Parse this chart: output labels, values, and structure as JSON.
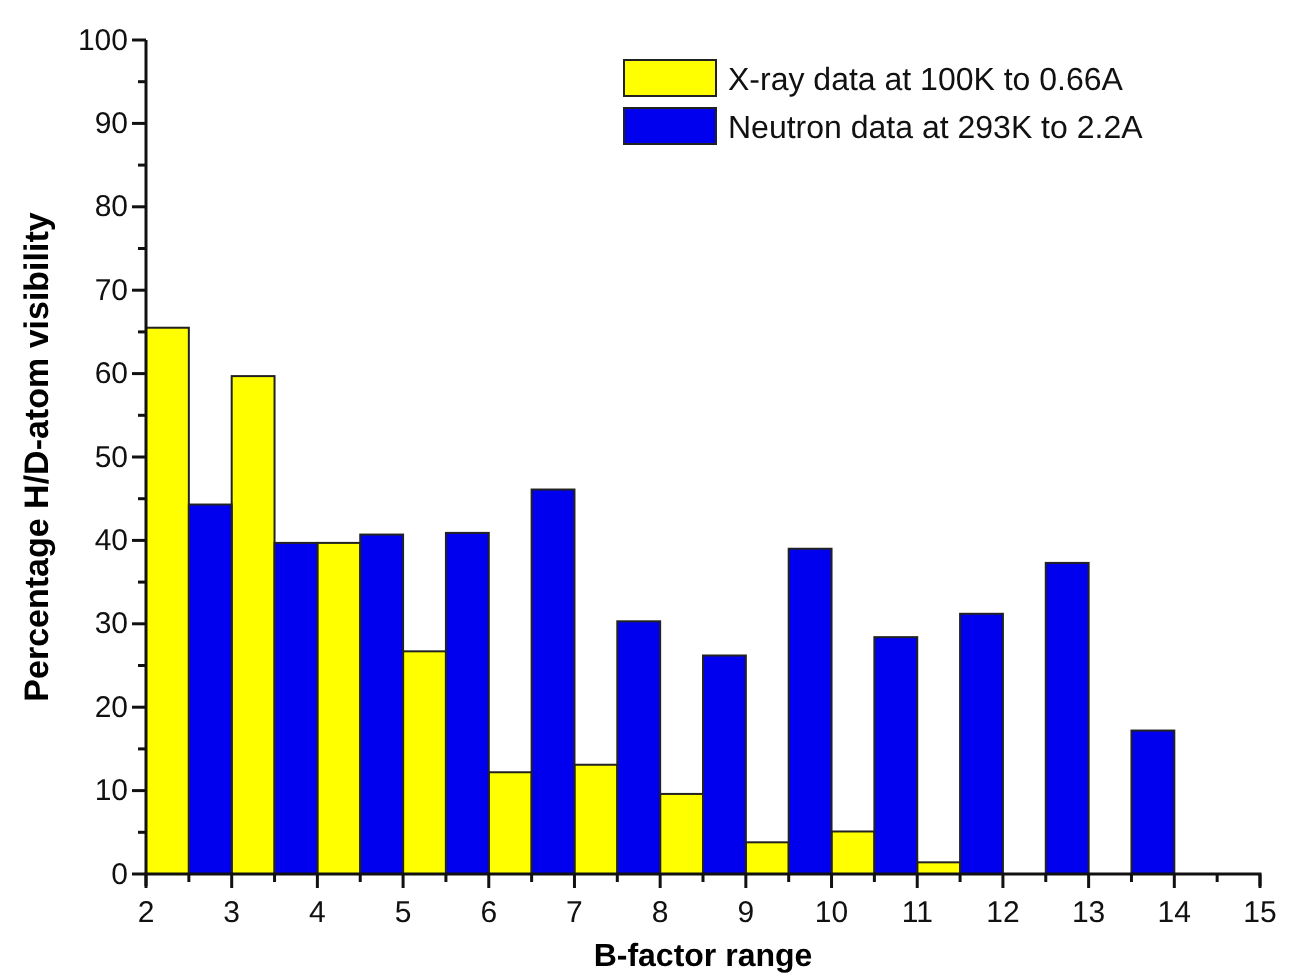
{
  "chart_data": {
    "type": "bar",
    "xlabel": "B-factor range",
    "ylabel": "Percentage H/D-atom visibility",
    "xlim": [
      2,
      15
    ],
    "ylim": [
      0,
      100
    ],
    "xticks": [
      2,
      {
        "value": 2.5,
        "label": null
      },
      3,
      {
        "value": 3.5,
        "label": null
      },
      4,
      {
        "value": 4.5,
        "label": null
      },
      5,
      {
        "value": 5.5,
        "label": null
      },
      6,
      {
        "value": 6.5,
        "label": null
      },
      7,
      {
        "value": 7.5,
        "label": null
      },
      8,
      {
        "value": 8.5,
        "label": null
      },
      9,
      {
        "value": 9.5,
        "label": null
      },
      10,
      {
        "value": 10.5,
        "label": null
      },
      11,
      {
        "value": 11.5,
        "label": null
      },
      12,
      {
        "value": 12.5,
        "label": null
      },
      13,
      {
        "value": 13.5,
        "label": null
      },
      14,
      {
        "value": 14.5,
        "label": null
      },
      15
    ],
    "yticks": [
      0,
      {
        "value": 5,
        "label": null
      },
      10,
      {
        "value": 15,
        "label": null
      },
      20,
      {
        "value": 25,
        "label": null
      },
      30,
      {
        "value": 35,
        "label": null
      },
      40,
      {
        "value": 45,
        "label": null
      },
      50,
      {
        "value": 55,
        "label": null
      },
      60,
      {
        "value": 65,
        "label": null
      },
      70,
      {
        "value": 75,
        "label": null
      },
      80,
      {
        "value": 85,
        "label": null
      },
      90,
      {
        "value": 95,
        "label": null
      },
      100
    ],
    "grid": false,
    "legend": "top right",
    "series": [
      {
        "name": "X-ray data at 100K to 0.66A",
        "color": "#ffff00",
        "x": [
          2.25,
          3.25,
          4.25,
          5.25,
          6.25,
          7.25,
          8.25,
          9.25,
          10.25,
          11.25,
          12.25,
          13.25
        ],
        "values": [
          65.5,
          59.7,
          39.7,
          26.7,
          12.2,
          13.1,
          9.6,
          3.8,
          5.1,
          1.4,
          0,
          0
        ]
      },
      {
        "name": "Neutron data at 293K to 2.2A",
        "color": "#0000ee",
        "x": [
          2.75,
          3.75,
          4.75,
          5.75,
          6.75,
          7.75,
          8.75,
          9.75,
          10.75,
          11.75,
          12.75,
          13.75
        ],
        "values": [
          44.3,
          39.7,
          40.7,
          40.9,
          46.1,
          30.3,
          26.2,
          39.0,
          28.4,
          31.2,
          37.3,
          17.2
        ]
      }
    ]
  }
}
